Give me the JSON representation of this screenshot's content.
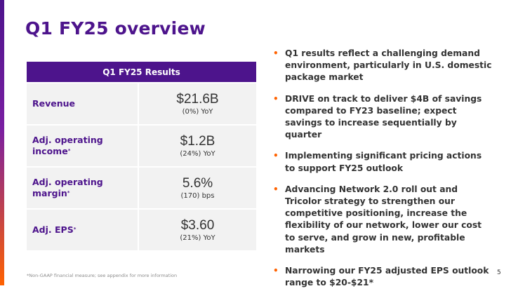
{
  "slide": {
    "title": "Q1 FY25 overview",
    "page_number": "5",
    "footnote": "*Non-GAAP financial measure; see appendix for more information"
  },
  "results_table": {
    "header": "Q1 FY25 Results",
    "rows": [
      {
        "label": "Revenue",
        "asterisk": "",
        "value": "$21.6B",
        "change": "(0%) YoY"
      },
      {
        "label": "Adj. operating income",
        "asterisk": "*",
        "value": "$1.2B",
        "change": "(24%) YoY"
      },
      {
        "label": "Adj. operating margin",
        "asterisk": "*",
        "value": "5.6%",
        "change": "(170) bps"
      },
      {
        "label": "Adj. EPS",
        "asterisk": "*",
        "value": "$3.60",
        "change": "(21%) YoY"
      }
    ]
  },
  "bullets": [
    "Q1 results reflect a challenging demand environment, particularly in U.S. domestic package market",
    "DRIVE on track to deliver $4B of savings compared to FY23 baseline; expect savings to increase sequentially by quarter",
    "Implementing significant pricing actions to support FY25 outlook",
    "Advancing Network 2.0 roll out and Tricolor strategy to strengthen our competitive positioning, increase the flexibility of our network, lower our cost to serve, and grow in new, profitable markets",
    "Narrowing our FY25 adjusted EPS outlook range to $20-$21*"
  ],
  "colors": {
    "brand_purple": "#4d148c",
    "brand_orange": "#ff6200",
    "cell_gray": "#f2f2f2"
  }
}
